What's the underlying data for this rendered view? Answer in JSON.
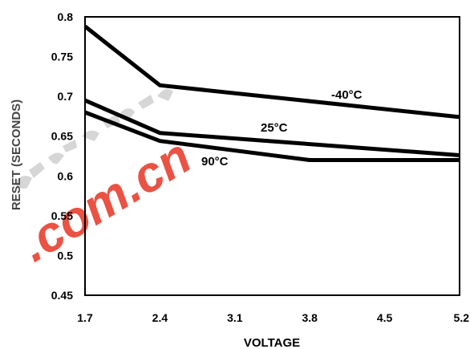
{
  "chart_data": {
    "type": "line",
    "xlabel": "VOLTAGE",
    "ylabel": "RESET (SECONDS)",
    "xlim": [
      1.7,
      5.2
    ],
    "ylim": [
      0.45,
      0.8
    ],
    "x_ticks": [
      "1.7",
      "2.4",
      "3.1",
      "3.8",
      "4.5",
      "5.2"
    ],
    "y_ticks": [
      "0.45",
      "0.5",
      "0.55",
      "0.6",
      "0.65",
      "0.7",
      "0.75",
      "0.8"
    ],
    "grid": false,
    "legend": "none",
    "series": [
      {
        "name": "-40°C",
        "color": "#000000",
        "x": [
          1.7,
          2.4,
          5.2
        ],
        "y": [
          0.788,
          0.714,
          0.674
        ]
      },
      {
        "name": "25°C",
        "color": "#000000",
        "x": [
          1.7,
          2.4,
          5.2
        ],
        "y": [
          0.695,
          0.654,
          0.626
        ]
      },
      {
        "name": "90°C",
        "color": "#000000",
        "x": [
          1.7,
          2.4,
          3.8,
          5.2
        ],
        "y": [
          0.68,
          0.644,
          0.62,
          0.62
        ]
      }
    ]
  },
  "watermark": {
    "text": ".com.cn",
    "color": "#e8402f"
  }
}
